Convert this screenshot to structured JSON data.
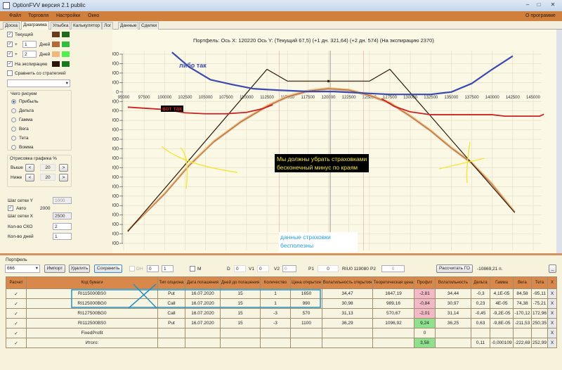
{
  "window": {
    "title": "OptionFVV версия 2.1 public",
    "minimize": "–",
    "maximize": "□",
    "close": "✕"
  },
  "menu": {
    "items": [
      "Файл",
      "Торговля",
      "Настройки",
      "Окно"
    ],
    "about": "О программе"
  },
  "tabs": [
    "Доска",
    "Диаграмма",
    "Улыбка",
    "Калькулятор",
    "Лог",
    "Данные",
    "Сделки"
  ],
  "active_tab": "Диаграмма",
  "left": {
    "curves": [
      {
        "label": "Текущий",
        "checked": true,
        "colors": [
          "#6b3a1f",
          "#1d6b1d"
        ]
      },
      {
        "label": "+",
        "days": "1",
        "days_label": "Дней",
        "checked": true,
        "colors": [
          "#b46a36",
          "#2fbf3a"
        ]
      },
      {
        "label": "+",
        "days": "2",
        "days_label": "Дней",
        "checked": true,
        "colors": [
          "#f0b87a",
          "#4ef04e"
        ]
      },
      {
        "label": "На экспирацию",
        "checked": true,
        "colors": [
          "#2b1708",
          "#137a1d"
        ]
      }
    ],
    "compare": {
      "label": "Сравнить со стратегией",
      "checked": false
    },
    "strategy_select": "",
    "draw_group": {
      "title": "Чего рисуем",
      "options": [
        "Прибыль",
        "Дельта",
        "Гамма",
        "Вега",
        "Тета",
        "Вомма"
      ],
      "selected": "Прибыль"
    },
    "range_group": {
      "title": "Отрисовка графика %",
      "above_label": "Выше",
      "above": "20",
      "below_label": "Ниже",
      "below": "20",
      "dec": "<",
      "inc": ">"
    },
    "grid_y_label": "Шаг сетки Y",
    "grid_y": "1000",
    "auto_label": "Авто",
    "auto_checked": true,
    "auto_value": "2000",
    "grid_x_label": "Шаг сетки X",
    "grid_x": "2500",
    "sko_label": "Кол-во СКО",
    "sko": "2",
    "days_label": "Кол-во дней",
    "days": "1"
  },
  "chart_data": {
    "type": "line",
    "title": "Портфель: Ось X:  120220 Ось Y:   (Текущий 67,5)  (+1 дн. 321,64)  (+2 дн. 574)  (На экспирацию 2370)",
    "xlim": [
      95000,
      145000
    ],
    "ylim": [
      -32000,
      8000
    ],
    "xticks": [
      95000,
      97500,
      100000,
      102500,
      105000,
      107500,
      110000,
      112500,
      115000,
      117500,
      120000,
      122500,
      125000,
      127500,
      130000,
      132500,
      135000,
      137500,
      140000,
      142500,
      145000
    ],
    "yticks": [
      8000,
      6000,
      4000,
      2000,
      0,
      -2000,
      -4000,
      -6000,
      -8000,
      -10000,
      -12000,
      -14000,
      -16000,
      -18000,
      -20000,
      -22000,
      -24000,
      -26000,
      -28000,
      -30000,
      -32000
    ],
    "grid": true,
    "cursor_x": 120220,
    "sd_lines": [
      114000,
      124300
    ],
    "series": [
      {
        "key": "expiration",
        "color": "#2b1708",
        "points": [
          [
            95500,
            -29500
          ],
          [
            112500,
            4800
          ],
          [
            115000,
            2300
          ],
          [
            120000,
            2300
          ],
          [
            125000,
            2300
          ],
          [
            127500,
            4800
          ],
          [
            142750,
            -25500
          ]
        ]
      },
      {
        "key": "plus2",
        "color": "#f0b87a",
        "points": [
          [
            95500,
            -29200
          ],
          [
            100000,
            -21300
          ],
          [
            103000,
            -15300
          ],
          [
            106000,
            -10300
          ],
          [
            109300,
            -6100
          ],
          [
            112500,
            -2800
          ],
          [
            115000,
            -800
          ],
          [
            117500,
            400
          ],
          [
            120000,
            900
          ],
          [
            122500,
            600
          ],
          [
            125000,
            -500
          ],
          [
            127500,
            -2100
          ],
          [
            130000,
            -4900
          ],
          [
            132500,
            -8000
          ],
          [
            135000,
            -11600
          ],
          [
            137500,
            -14800
          ],
          [
            140000,
            -19300
          ],
          [
            142750,
            -25200
          ]
        ]
      },
      {
        "key": "plus1",
        "color": "#b46a36",
        "points": [
          [
            95500,
            -29300
          ],
          [
            100000,
            -21500
          ],
          [
            103000,
            -15500
          ],
          [
            106000,
            -10500
          ],
          [
            109300,
            -6300
          ],
          [
            112500,
            -3000
          ],
          [
            115000,
            -1000
          ],
          [
            117500,
            200
          ],
          [
            120000,
            700
          ],
          [
            122500,
            400
          ],
          [
            125000,
            -700
          ],
          [
            127500,
            -2300
          ],
          [
            130000,
            -5100
          ],
          [
            132500,
            -8200
          ],
          [
            135000,
            -11800
          ],
          [
            137500,
            -15000
          ],
          [
            140000,
            -19500
          ],
          [
            142750,
            -25300
          ]
        ]
      },
      {
        "key": "current",
        "color": "#d8c0a0",
        "points": [
          [
            95500,
            -29400
          ],
          [
            100000,
            -21700
          ],
          [
            103000,
            -15700
          ],
          [
            106000,
            -10700
          ],
          [
            109300,
            -6500
          ],
          [
            112500,
            -3200
          ],
          [
            115000,
            -1200
          ],
          [
            117500,
            0
          ],
          [
            120000,
            500
          ],
          [
            122500,
            200
          ],
          [
            125000,
            -900
          ],
          [
            127500,
            -2500
          ],
          [
            130000,
            -5300
          ],
          [
            132500,
            -8400
          ],
          [
            135000,
            -12000
          ],
          [
            137500,
            -15200
          ],
          [
            140000,
            -19700
          ],
          [
            142750,
            -25400
          ]
        ]
      }
    ],
    "annotations": {
      "red_left": [
        [
          95500,
          -3200
        ],
        [
          100000,
          -3700
        ],
        [
          102500,
          -4400
        ],
        [
          105000,
          -4600
        ],
        [
          107500,
          -4600
        ],
        [
          110000,
          -4300
        ],
        [
          112000,
          -3500
        ],
        [
          113200,
          -2700
        ]
      ],
      "red_right": [
        [
          126500,
          -1400
        ],
        [
          128000,
          -3000
        ],
        [
          130000,
          -4200
        ],
        [
          132500,
          -4800
        ],
        [
          140000,
          -4800
        ],
        [
          141500,
          -5100
        ],
        [
          145800,
          -5100
        ],
        [
          146300,
          -4700
        ]
      ],
      "blue": [
        [
          100900,
          8400
        ],
        [
          103000,
          5300
        ],
        [
          105600,
          2600
        ],
        [
          108200,
          1600
        ],
        [
          110800,
          700
        ],
        [
          113800,
          400
        ],
        [
          117600,
          100
        ],
        [
          120600,
          100
        ],
        [
          123000,
          -100
        ],
        [
          125000,
          -300
        ],
        [
          127500,
          -500
        ],
        [
          132500,
          -500
        ],
        [
          135000,
          0
        ],
        [
          137500,
          1800
        ],
        [
          140000,
          4800
        ],
        [
          142500,
          7600
        ]
      ],
      "text_blue": "либо так",
      "text_red": "вот так",
      "text_yellow": [
        "Мы должны убрать страховками",
        "бесконечный минус по краям"
      ],
      "text_cyan": [
        "данные страховки",
        "бесполезны"
      ]
    }
  },
  "portfolio": {
    "label": "Портфель",
    "name": "666",
    "import": "Импорт",
    "delete": "Удалить",
    "save": "Сохранить",
    "dh_label": "DH",
    "spin1": "0",
    "spin2": "1",
    "m_label": "M",
    "d_label": "D",
    "d": "0",
    "v1_label": "V1",
    "v1": "0",
    "v2_label": "V2",
    "v2": "0",
    "p1_label": "P1",
    "p1": "0",
    "riu": "RIU0 119080",
    "p2_label": "P2",
    "p2": "0",
    "calc_go": "Рассчитать ГО",
    "go_value": "-10869,21 п.",
    "collapse": "_"
  },
  "table": {
    "headers": [
      "Расчет",
      "Код бумаги",
      "Тип опциона",
      "Дата погашения",
      "Дней до погашения",
      "Количество",
      "Цена открытия",
      "Волатильность открытия",
      "Теоретическая цена",
      "Профит",
      "Волатильность",
      "Дельта",
      "Гамма",
      "Вега",
      "Тета",
      "X"
    ],
    "rows": [
      [
        "✓",
        "RI115000BS0",
        "Put",
        "16.07.2020",
        "15",
        "1",
        "1650",
        "34,47",
        "1647,19",
        "-2,81",
        "34,44",
        "-0,3",
        "4,1E-05",
        "84,58",
        "-95,11",
        "X"
      ],
      [
        "✓",
        "RI125000BG0",
        "Call",
        "16.07.2020",
        "15",
        "1",
        "990",
        "30,98",
        "989,16",
        "-0,84",
        "30,97",
        "0,23",
        "4E-05",
        "74,38",
        "-75,21",
        "X"
      ],
      [
        "✓",
        "RI127500BG0",
        "Call",
        "16.07.2020",
        "15",
        "-3",
        "570",
        "31,13",
        "570,67",
        "-2,01",
        "31,14",
        "-0,45",
        "-9,2E-05",
        "-170,12",
        "172,96",
        "X"
      ],
      [
        "✓",
        "RI112500BS0",
        "Put",
        "16.07.2020",
        "15",
        "-3",
        "1100",
        "36,29",
        "1096,92",
        "9,24",
        "36,25",
        "0,63",
        "-9,8E-05",
        "-211,53",
        "250,35",
        "X"
      ],
      [
        "✓",
        "FixedProfit",
        "",
        "",
        "",
        "",
        "",
        "",
        "",
        "0",
        "",
        "",
        "",
        "",
        "",
        "X"
      ],
      [
        "✓",
        "Итого:",
        "",
        "",
        "",
        "",
        "",
        "",
        "",
        "3,58",
        "",
        "0,11",
        "-0,000109",
        "-222,69",
        "252,99",
        "X"
      ]
    ],
    "profit_status": [
      "neg",
      "neg",
      "neg",
      "pos",
      "",
      "pos"
    ]
  },
  "colors": {
    "menu": "#d17f3d",
    "header": "#d8884a",
    "loss": "#f4b9c6",
    "gain": "#8fe08f",
    "annotation_blue": "#3a4ab0",
    "annotation_red": "#cc2222",
    "annotation_yellow": "#f5e63a",
    "annotation_cyan": "#2a9fd6",
    "highlight_box": "#2a8fbf"
  }
}
